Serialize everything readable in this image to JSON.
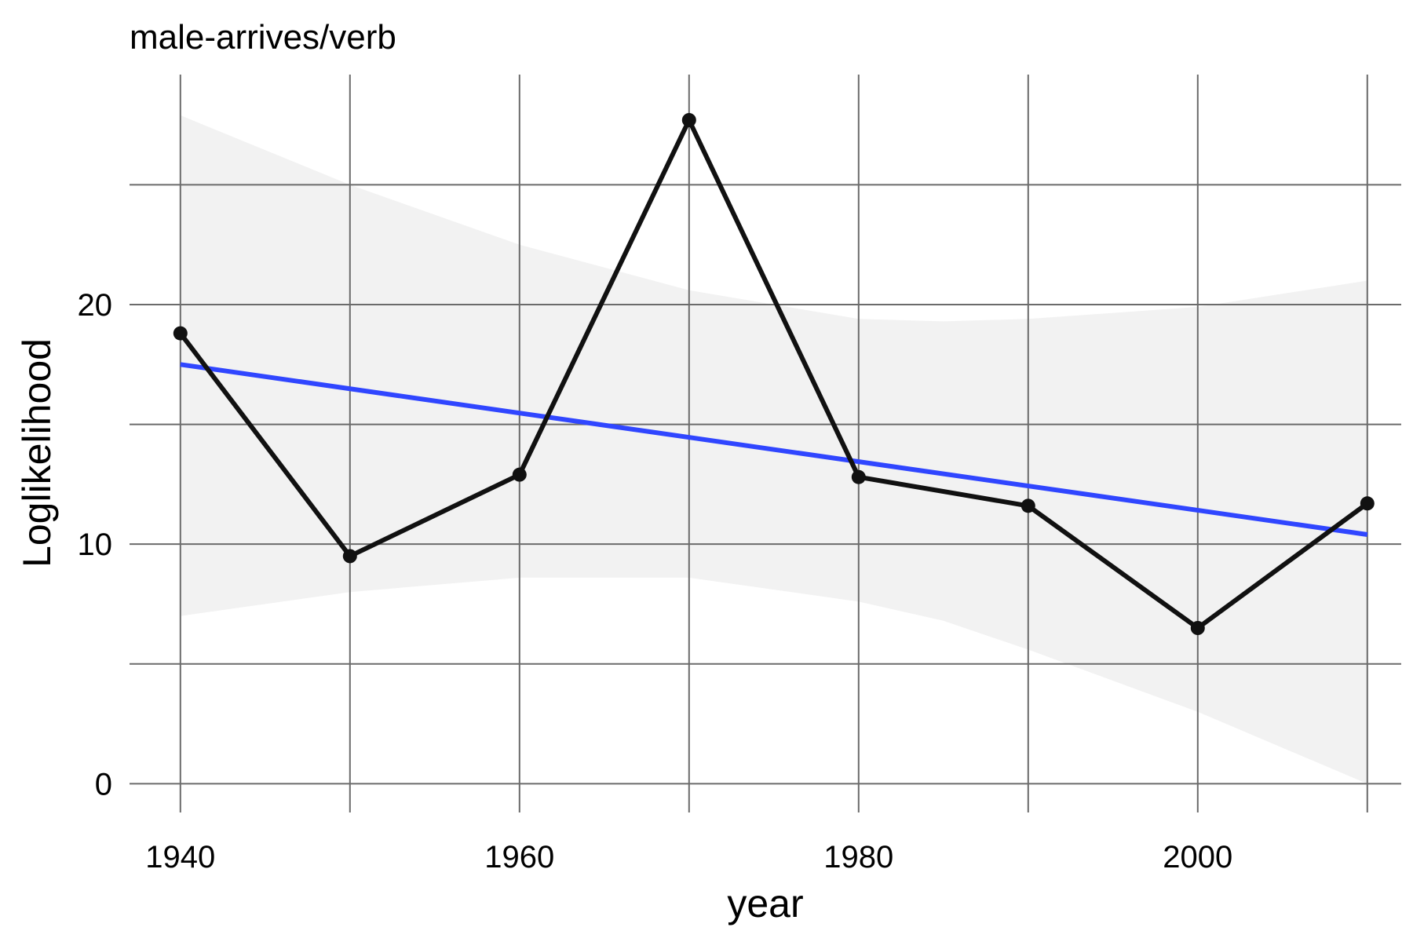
{
  "chart_data": {
    "type": "line",
    "title": "male-arrives/verb",
    "xlabel": "year",
    "ylabel": "Loglikelihood",
    "x": [
      1940,
      1950,
      1960,
      1970,
      1980,
      1990,
      2000,
      2010
    ],
    "series": [
      {
        "values": [
          18.8,
          9.5,
          12.9,
          27.7,
          12.8,
          11.6,
          6.5,
          11.7
        ],
        "color": "#111111"
      }
    ],
    "trend_line": {
      "x": [
        1940,
        2010
      ],
      "y": [
        17.5,
        10.4
      ],
      "color": "#3046ff"
    },
    "confidence_band": {
      "x": [
        1940,
        1950,
        1960,
        1970,
        1980,
        1985,
        1990,
        2000,
        2010
      ],
      "upper": [
        27.9,
        25.0,
        22.5,
        20.6,
        19.4,
        19.3,
        19.4,
        19.9,
        21.0
      ],
      "lower": [
        7.0,
        8.0,
        8.6,
        8.6,
        7.6,
        6.8,
        5.6,
        3.0,
        0.0
      ],
      "color": "#f2f2f2"
    },
    "xlim": [
      1937,
      2012
    ],
    "ylim": [
      -1.2,
      29.6
    ],
    "x_ticks": [
      1940,
      1960,
      1980,
      2000
    ],
    "x_grid": [
      1940,
      1950,
      1960,
      1970,
      1980,
      1990,
      2000,
      2010
    ],
    "y_ticks": [
      0,
      10,
      20
    ],
    "y_grid": [
      0,
      5,
      10,
      15,
      20,
      25
    ],
    "grid": true,
    "grid_color": "#6b6b6b",
    "legend": "none"
  }
}
